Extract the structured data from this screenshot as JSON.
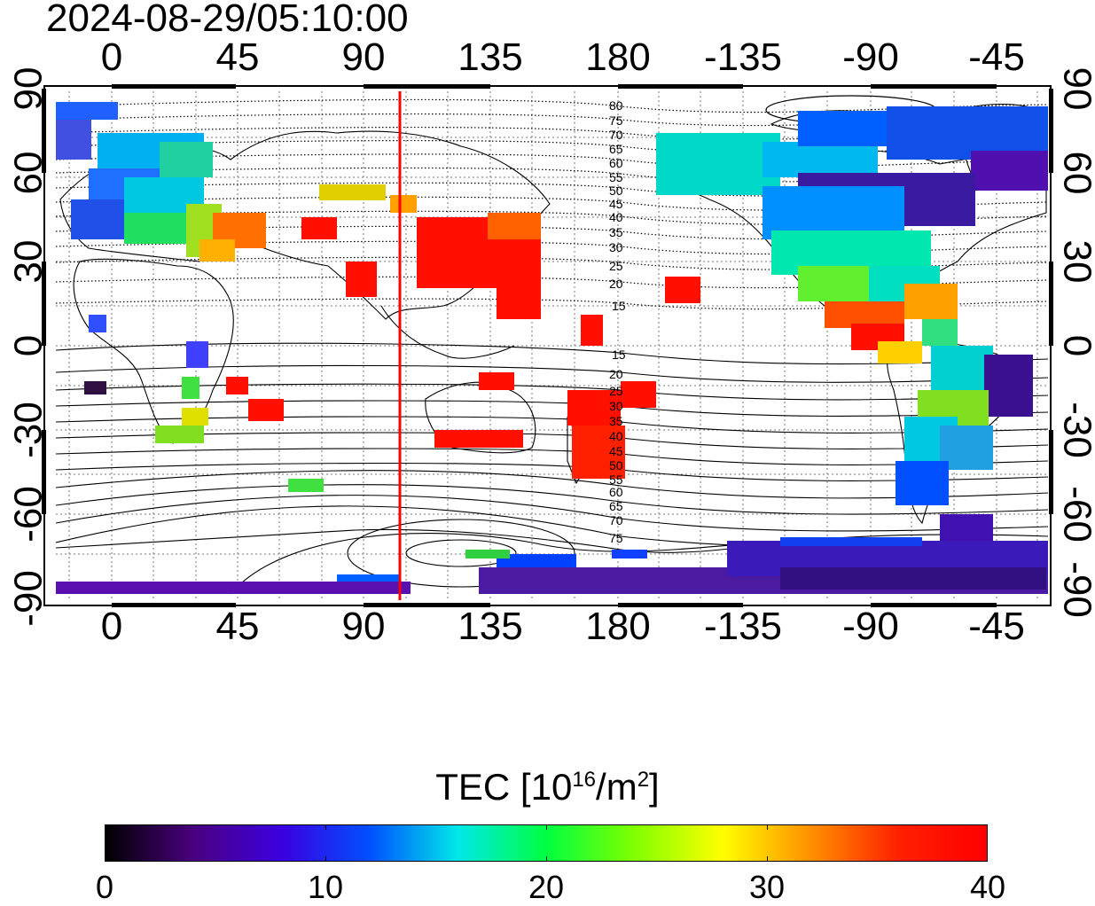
{
  "map": {
    "title": "2024-08-29/05:10:00",
    "lon_ticks_top": [
      "0",
      "45",
      "90",
      "135",
      "180",
      "-135",
      "-90",
      "-45"
    ],
    "lon_ticks_bottom": [
      "0",
      "45",
      "90",
      "135",
      "180",
      "-135",
      "-90",
      "-45"
    ],
    "lat_ticks_left": [
      "90",
      "60",
      "30",
      "0",
      "-30",
      "-60",
      "-90"
    ],
    "lat_ticks_right": [
      "90",
      "60",
      "30",
      "0",
      "-30",
      "-60",
      "-90"
    ],
    "contour_labels_north": [
      "80",
      "75",
      "70",
      "65",
      "60",
      "55",
      "50",
      "45",
      "40",
      "35",
      "30",
      "25",
      "20",
      "15"
    ],
    "contour_labels_south": [
      "15",
      "20",
      "25",
      "30",
      "35",
      "40",
      "45",
      "50",
      "55",
      "60",
      "65",
      "70",
      "75"
    ],
    "terminator_color": "#ff0000"
  },
  "colorbar": {
    "title": "TEC  [10",
    "title_exp": "16",
    "title_unit": "/m",
    "title_unit_exp": "2",
    "title_end": "]",
    "min": 0,
    "max": 40,
    "ticks": [
      "0",
      "10",
      "20",
      "30",
      "40"
    ],
    "colors": [
      "#000000",
      "#4a0080",
      "#3a00e0",
      "#0050ff",
      "#00e8e8",
      "#00ff40",
      "#80ff00",
      "#ffff00",
      "#ff9000",
      "#ff2000",
      "#ff0000"
    ]
  }
}
